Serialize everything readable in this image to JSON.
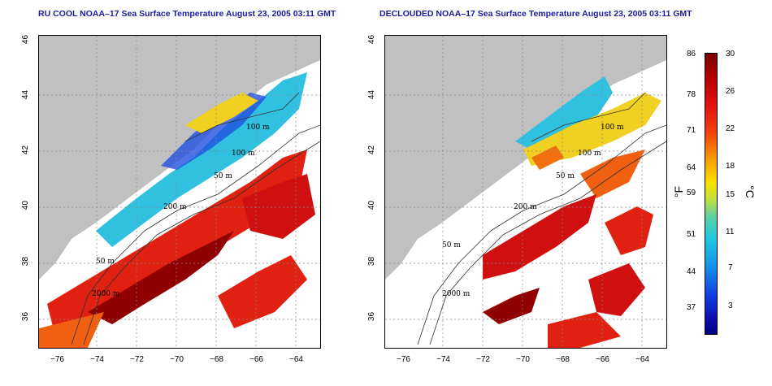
{
  "left_panel": {
    "title": "RU COOL NOAA–17 Sea Surface Temperature August 23, 2005 03:11 GMT"
  },
  "right_panel": {
    "title": "DECLOUDED NOAA–17 Sea Surface Temperature August 23, 2005 03:11 GMT"
  },
  "axes": {
    "x_ticks": [
      "−76",
      "−74",
      "−72",
      "−70",
      "−68",
      "−66",
      "−64"
    ],
    "y_ticks": [
      "46",
      "44",
      "42",
      "40",
      "38",
      "36"
    ]
  },
  "contour_labels": [
    "100 m",
    "100 m",
    "50 m",
    "200 m",
    "50 m",
    "2000 m"
  ],
  "colorbar": {
    "unit_f": "°F",
    "unit_c": "°C",
    "f_ticks": [
      "86",
      "78",
      "71",
      "64",
      "59",
      "51",
      "44",
      "37"
    ],
    "c_ticks": [
      "30",
      "26",
      "22",
      "18",
      "15",
      "11",
      "7",
      "3"
    ]
  },
  "colors": {
    "land": "#c0c0c0",
    "cloud": "#ffffff",
    "title": "#1a1aa0",
    "warm": "#d01010",
    "hot": "#900000",
    "cool": "#30c0e0",
    "cold": "#2050e0"
  }
}
